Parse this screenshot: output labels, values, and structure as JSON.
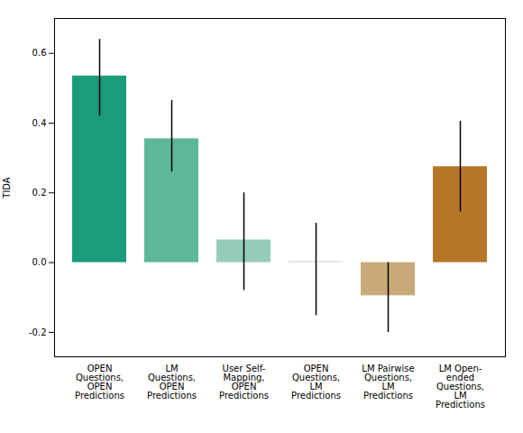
{
  "chart_data": {
    "type": "bar",
    "categories": [
      "OPEN\nQuestions,\nOPEN\nPredictions",
      "LM\nQuestions,\nOPEN\nPredictions",
      "User Self-\nMapping,\nOPEN\nPredictions",
      "OPEN\nQuestions,\nLM\nPredictions",
      "LM Pairwise\nQuestions,\nLM\nPredictions",
      "LM Open-\nended\nQuestions,\nLM\nPredictions"
    ],
    "values": [
      0.535,
      0.355,
      0.065,
      0.003,
      -0.095,
      0.275
    ],
    "errors_low": [
      0.115,
      0.095,
      0.145,
      0.155,
      0.105,
      0.13
    ],
    "errors_high": [
      0.105,
      0.11,
      0.135,
      0.11,
      0.095,
      0.13
    ],
    "colors": [
      "#1a9b7c",
      "#5db89a",
      "#95ccb8",
      "#ccddd6",
      "#c8a97a",
      "#b5762a"
    ],
    "ylabel": "TIDA",
    "ylim": [
      -0.27,
      0.7
    ],
    "yticks": [
      -0.2,
      {
        "value": 0.0,
        "label": "0.0"
      },
      0.2,
      0.4,
      0.6
    ],
    "grid": false
  }
}
